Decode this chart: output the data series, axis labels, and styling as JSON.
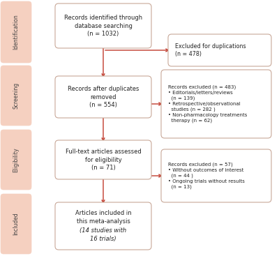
{
  "bg_color": "#ffffff",
  "sidebar_color": "#f5d0c0",
  "sidebar_text_color": "#444444",
  "box_fill": "#ffffff",
  "box_edge_color": "#c8a898",
  "arrow_color": "#c0392b",
  "sidebar_labels": [
    "Identification",
    "Screening",
    "Eligibility",
    "Included"
  ],
  "main_box_texts": [
    "Records identified through\ndatabase searching\n(n = 1032)",
    "Records after duplicates\nremoved\n(n = 554)",
    "Full-text articles assessed\nfor eligibility\n(n = 71)",
    "Articles included in\nthis meta-analysis\n(14 studies with\n16 trials)"
  ],
  "side_box_texts": [
    "Excluded for duplications\n(n = 478)",
    "Records excluded (n = 483)\n• Editorials/letters/reviews\n  (n = 139)\n• Retrospective/observational\n  studies (n = 282 )\n• Non-pharmacology treatments\n  therapy (n = 62)",
    "Records excluded (n = 57)\n• Without outcomes of interest\n  (n = 44 )\n• Ongoing trials without results\n  (n = 13)"
  ]
}
